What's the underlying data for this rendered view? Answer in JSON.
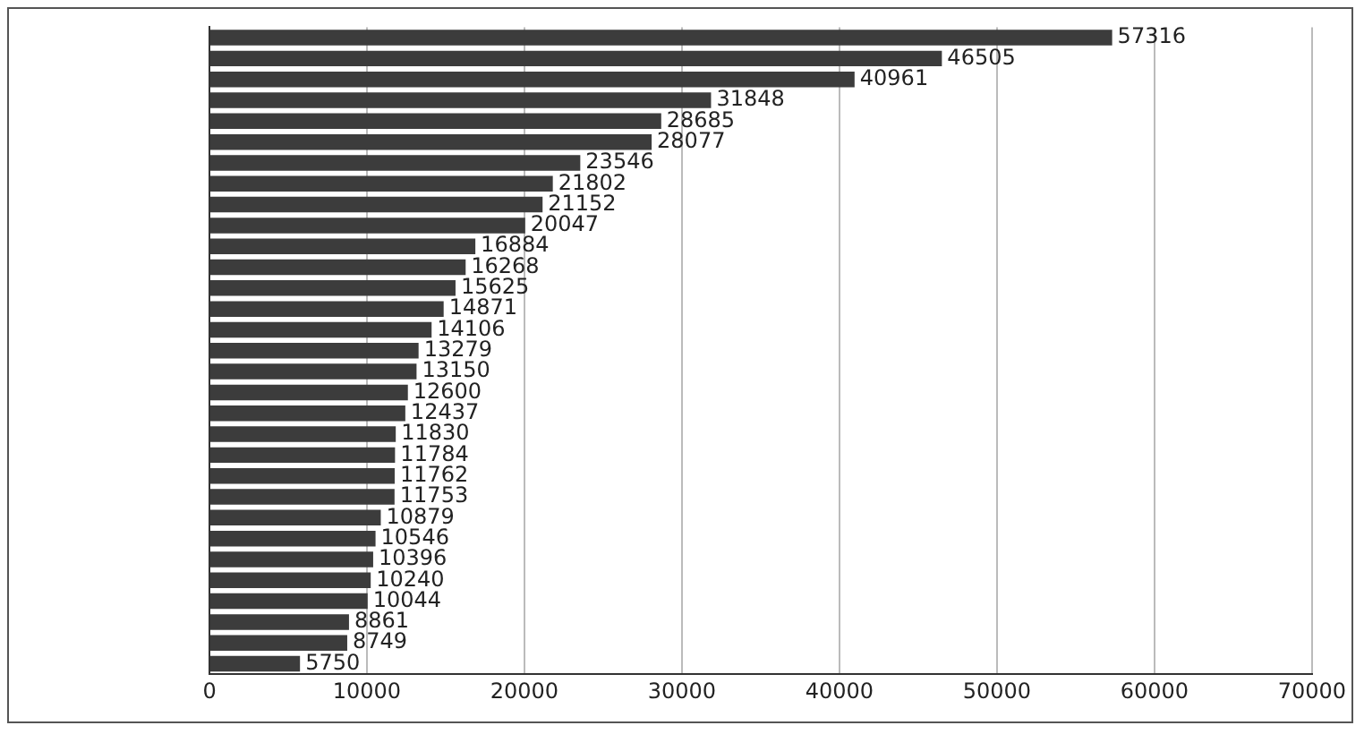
{
  "chart_data": {
    "type": "bar",
    "orientation": "horizontal",
    "categories": [
      null,
      null,
      null,
      null,
      null,
      null,
      null,
      null,
      null,
      null,
      null,
      null,
      null,
      null,
      null,
      null,
      null,
      null,
      null,
      null,
      null,
      null,
      null,
      null,
      null,
      null,
      null,
      null,
      null,
      null,
      null
    ],
    "values": [
      57316,
      46505,
      40961,
      31848,
      28685,
      28077,
      23546,
      21802,
      21152,
      20047,
      16884,
      16268,
      15625,
      14871,
      14106,
      13279,
      13150,
      12600,
      12437,
      11830,
      11784,
      11762,
      11753,
      10879,
      10546,
      10396,
      10240,
      10044,
      8861,
      8749,
      5750
    ],
    "color": "#3c3c3c",
    "xlim": [
      0,
      70000
    ],
    "xticks": [
      0,
      10000,
      20000,
      30000,
      40000,
      50000,
      60000,
      70000
    ],
    "grid": "x",
    "data_labels": true
  }
}
